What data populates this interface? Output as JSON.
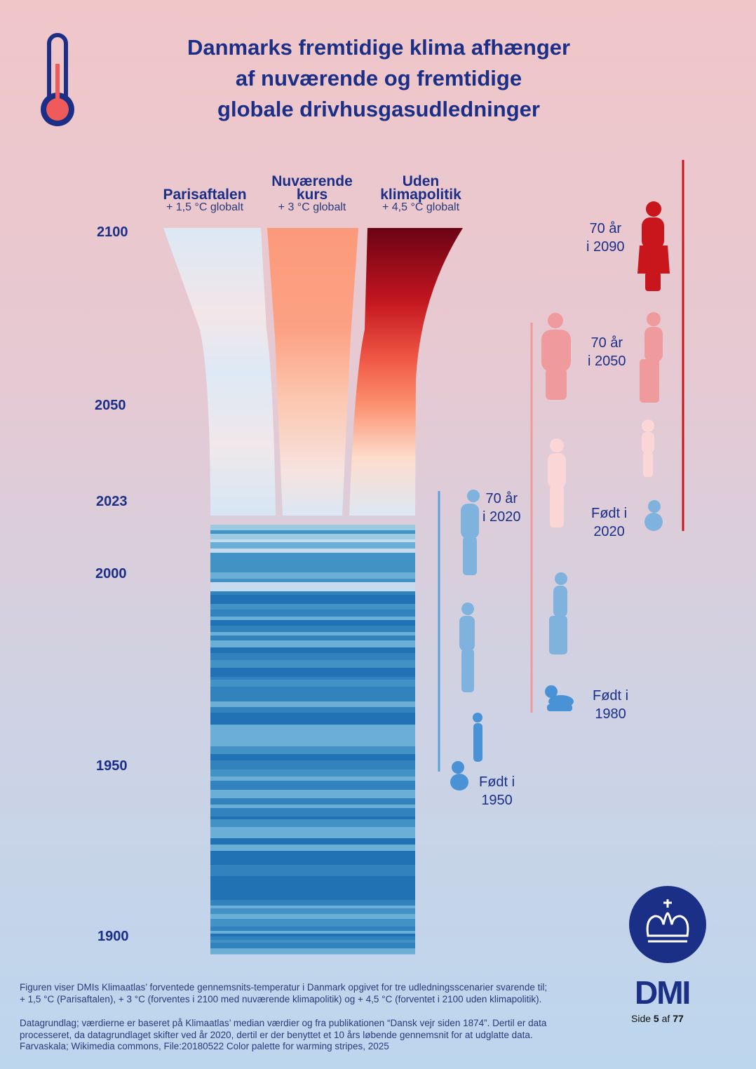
{
  "title": [
    "Danmarks fremtidige klima afhænger",
    "af nuværende og fremtidige",
    "globale drivhusgasudledninger"
  ],
  "scenarios": [
    {
      "name_line1": "Parisaftalen",
      "name_line2": "",
      "sub": "+ 1,5 °C globalt"
    },
    {
      "name_line1": "Nuværende",
      "name_line2": "kurs",
      "sub": "+ 3 °C globalt"
    },
    {
      "name_line1": "Uden",
      "name_line2": "klimapolitik",
      "sub": "+ 4,5 °C globalt"
    }
  ],
  "years": [
    "2100",
    "2050",
    "2023",
    "2000",
    "1950",
    "1900"
  ],
  "generations": {
    "g1950": {
      "born": [
        "Født i",
        "1950"
      ],
      "seventy": [
        "70 år",
        "i 2020"
      ]
    },
    "g1980": {
      "born": [
        "Født i",
        "1980"
      ],
      "seventy": [
        "70 år",
        "i 2050"
      ]
    },
    "g2020": {
      "born": [
        "Født i",
        "2020"
      ],
      "seventy": [
        "70 år",
        "i 2090"
      ]
    }
  },
  "colors": {
    "blue": "#5a9fd8",
    "pink": "#ef9a9c",
    "red": "#c9161c",
    "navy": "#1b2f86"
  },
  "footer": {
    "p1": [
      "Figuren viser DMIs Klimaatlas’ forventede gennemsnits-temperatur i Danmark opgivet for tre udledningsscenarier svarende til;",
      "+ 1,5 °C (Parisaftalen), + 3 °C (forventes i 2100 med nuværende klimapolitik) og + 4,5 °C (forventet i 2100 uden klimapolitik)."
    ],
    "p2": [
      "Datagrundlag; værdierne er baseret på Klimaatlas’ median værdier og fra publikationen “Dansk vejr siden 1874”. Dertil er data",
      "processeret, da datagrundlaget skifter ved år 2020, dertil er der benyttet et 10 års løbende gennemsnit for at udglatte data.",
      "Farvaskala; Wikimedia commons, File:20180522 Color palette for warming stripes, 2025"
    ]
  },
  "logo": {
    "text": "DMI",
    "page_prefix": "Side ",
    "page": "5",
    "page_mid": " af ",
    "page_total": "77"
  }
}
